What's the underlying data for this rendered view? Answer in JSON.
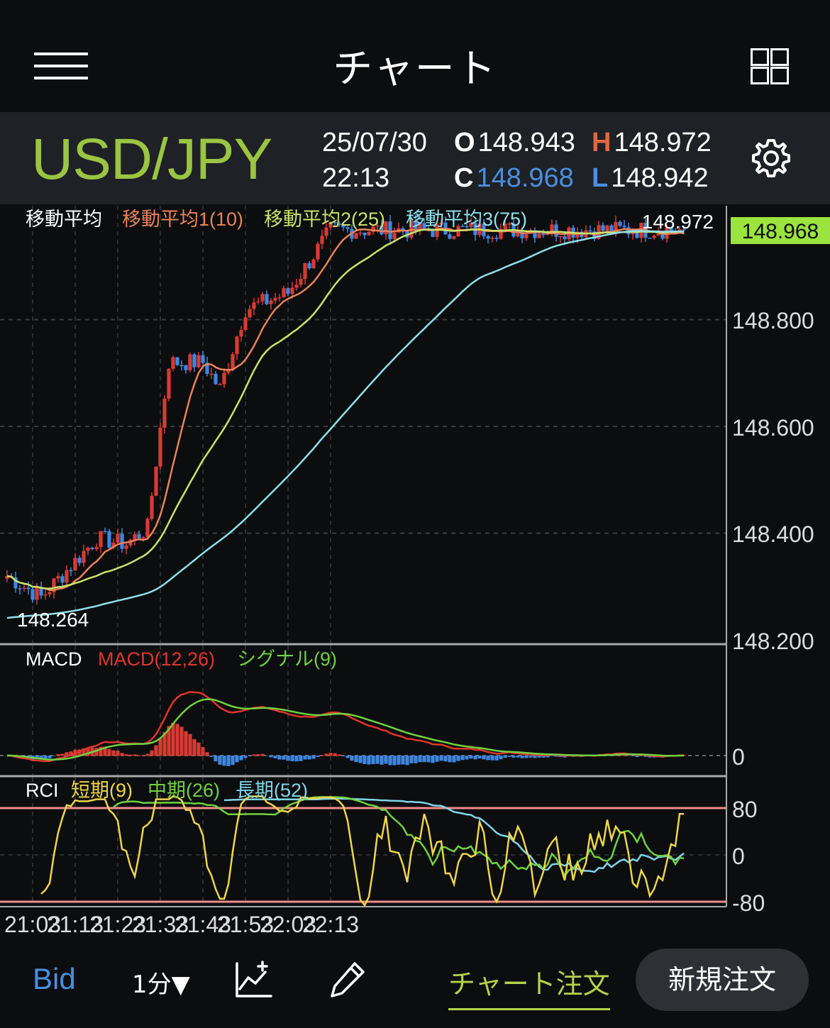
{
  "header": {
    "title": "チャート"
  },
  "info": {
    "symbol": "USD/JPY",
    "date": "25/07/30",
    "time": "22:13",
    "open_label": "O",
    "open": "148.943",
    "high_label": "H",
    "high": "148.972",
    "close_label": "C",
    "close": "148.968",
    "low_label": "L",
    "low": "148.942"
  },
  "colors": {
    "background": "#0c0d0f",
    "symbol": "#9bc442",
    "up_candle": "#d83a33",
    "down_candle": "#3f86e0",
    "ma1": "#e8835a",
    "ma2": "#c9e36a",
    "ma3": "#8fe0ea",
    "macd": "#e0362d",
    "signal": "#6fd240",
    "rci_short": "#ecd64a",
    "rci_mid": "#6fd240",
    "rci_long": "#7fd6e8",
    "price_tag": "#9be33d",
    "rci_level": "#f08c8c"
  },
  "main_chart": {
    "legend_title": "移動平均",
    "ma1_label": "移動平均1(10)",
    "ma2_label": "移動平均2(25)",
    "ma3_label": "移動平均3(75)",
    "high_marker": "148.972",
    "low_marker": "148.264",
    "current_price": "148.968"
  },
  "macd_panel": {
    "title": "MACD",
    "macd_label": "MACD(12,26)",
    "signal_label": "シグナル(9)"
  },
  "rci_panel": {
    "title": "RCI",
    "short_label": "短期(9)",
    "mid_label": "中期(26)",
    "long_label": "長期(52)"
  },
  "chart_data": {
    "type": "candlestick",
    "instrument": "USD/JPY",
    "timeframe": "1分",
    "x_tick_labels": [
      "21:03",
      "21:13",
      "21:23",
      "21:33",
      "21:43",
      "21:53",
      "22:03",
      "22:13"
    ],
    "y_axis": {
      "ticks": [
        "148.200",
        "148.400",
        "148.600",
        "148.800"
      ],
      "range": [
        148.2,
        149.0
      ]
    },
    "key_points": [
      {
        "time": "20:57",
        "price": 148.32
      },
      {
        "time": "21:05",
        "price": 148.28
      },
      {
        "time": "21:18",
        "price": 148.39
      },
      {
        "time": "21:25",
        "price": 148.38
      },
      {
        "time": "21:30",
        "price": 148.41
      },
      {
        "time": "21:35",
        "price": 148.72
      },
      {
        "time": "21:43",
        "price": 148.72
      },
      {
        "time": "21:47",
        "price": 148.67
      },
      {
        "time": "21:53",
        "price": 148.82
      },
      {
        "time": "22:03",
        "price": 148.85
      },
      {
        "time": "22:13",
        "price": 148.968
      }
    ],
    "macd_axis_ticks": [
      "0"
    ],
    "rci_axis_ticks": [
      "80",
      "0",
      "-80"
    ],
    "rci_levels": [
      80,
      -80
    ]
  },
  "bottom_bar": {
    "price_type": "Bid",
    "timeframe": "1分▼",
    "chart_order": "チャート注文",
    "new_order": "新規注文"
  }
}
